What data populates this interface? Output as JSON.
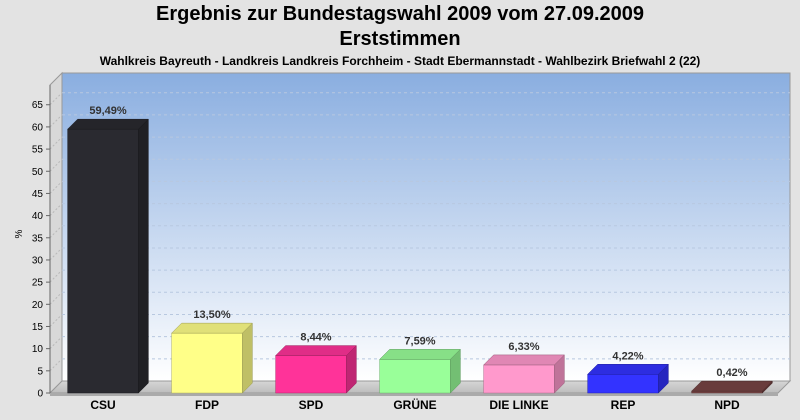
{
  "chart_data": {
    "type": "bar",
    "title": "Ergebnis zur Bundestagswahl 2009 vom 27.09.2009",
    "title_line2": "Erststimmen",
    "subtitle": "Wahlkreis Bayreuth - Landkreis Landkreis Forchheim - Stadt Ebermannstadt - Wahlbezirk Briefwahl 2 (22)",
    "ylabel": "%",
    "xlabel": "",
    "ylim": [
      0,
      69
    ],
    "yticks": [
      0,
      5,
      10,
      15,
      20,
      25,
      30,
      35,
      40,
      45,
      50,
      55,
      60,
      65
    ],
    "grid": true,
    "categories": [
      "CSU",
      "FDP",
      "SPD",
      "GRÜNE",
      "DIE LINKE",
      "REP",
      "NPD"
    ],
    "values": [
      59.49,
      13.5,
      8.44,
      7.59,
      6.33,
      4.22,
      0.42
    ],
    "value_labels": [
      "59,49%",
      "13,50%",
      "8,44%",
      "7,59%",
      "6,33%",
      "4,22%",
      "0,42%"
    ],
    "colors": [
      "#2a2a30",
      "#ffff88",
      "#ff3399",
      "#99ff99",
      "#ff99cc",
      "#3333ff",
      "#774444"
    ]
  }
}
